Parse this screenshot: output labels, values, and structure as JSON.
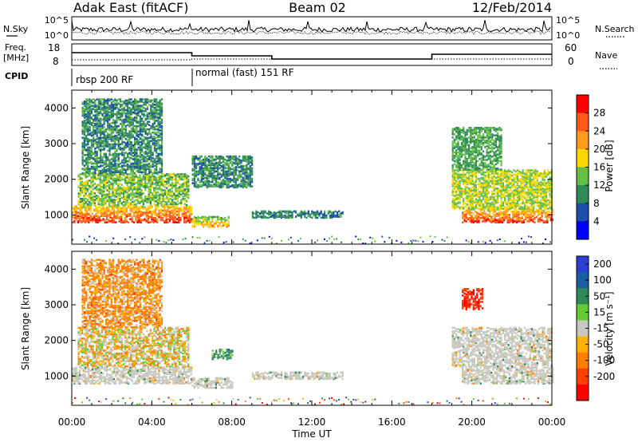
{
  "header": {
    "station": "Adak East (fitACF)",
    "beam": "Beam 02",
    "date": "12/Feb/2014"
  },
  "summary_panels": {
    "nsky_label": "N.Sky",
    "nsearch_label": "N.Search",
    "nsky_ticks": [
      "10^5",
      "10^0"
    ],
    "nsky_right_ticks": [
      "10^5",
      "10^0"
    ],
    "freq_label_1": "Freq.",
    "freq_label_2": "[MHz]",
    "freq_ticks": [
      "18",
      "8"
    ],
    "nave_label": "Nave",
    "nave_ticks": [
      "60",
      "0"
    ],
    "cpid_label": "CPID",
    "cpid_segments": [
      {
        "label": "rbsp 200 RF",
        "start_hour": 0,
        "end_hour": 6
      },
      {
        "label": "normal (fast) 151 RF",
        "start_hour": 6,
        "end_hour": 24
      }
    ]
  },
  "chart_data": [
    {
      "type": "heatmap",
      "panel": "power",
      "ylabel": "Slant Range [km]",
      "xlabel": "",
      "ylim": [
        180,
        4500
      ],
      "yticks": [
        1000,
        2000,
        3000,
        4000
      ],
      "xlim_hours": [
        0,
        24
      ],
      "colorbar_label": "Power [dB]",
      "colorbar_ticks": [
        4,
        8,
        12,
        16,
        20,
        24,
        28
      ],
      "colors": [
        "#0000ff",
        "#1a4ea8",
        "#2e8b57",
        "#66c048",
        "#ffd700",
        "#ff9a1c",
        "#ff5a1a",
        "#ff0000"
      ],
      "echo_regions": [
        {
          "t": [
            0.0,
            6.0
          ],
          "r": [
            820,
            1300
          ],
          "power": 28
        },
        {
          "t": [
            0.3,
            5.8
          ],
          "r": [
            1300,
            2200
          ],
          "power": 14
        },
        {
          "t": [
            0.5,
            4.5
          ],
          "r": [
            2200,
            4300
          ],
          "power": 10
        },
        {
          "t": [
            6.0,
            7.8
          ],
          "r": [
            700,
            1000
          ],
          "power": 22
        },
        {
          "t": [
            6.0,
            9.0
          ],
          "r": [
            1800,
            2700
          ],
          "power": 10
        },
        {
          "t": [
            9.0,
            13.5
          ],
          "r": [
            950,
            1150
          ],
          "power": 9
        },
        {
          "t": [
            19.5,
            24.0
          ],
          "r": [
            820,
            1200
          ],
          "power": 28
        },
        {
          "t": [
            19.0,
            24.0
          ],
          "r": [
            1200,
            2300
          ],
          "power": 16
        },
        {
          "t": [
            19.0,
            21.5
          ],
          "r": [
            2300,
            3500
          ],
          "power": 12
        }
      ]
    },
    {
      "type": "heatmap",
      "panel": "velocity",
      "ylabel": "Slant Range [km]",
      "xlabel": "Time UT",
      "ylim": [
        180,
        4500
      ],
      "yticks": [
        1000,
        2000,
        3000,
        4000
      ],
      "xlim_hours": [
        0,
        24
      ],
      "xtick_labels": [
        "00:00",
        "04:00",
        "08:00",
        "12:00",
        "16:00",
        "20:00",
        "00:00"
      ],
      "colorbar_label": "Velocity [m s⁻¹]",
      "colorbar_ticks": [
        200,
        100,
        50,
        15,
        -15,
        -50,
        -100,
        -200
      ],
      "colors": [
        "#2a3fcf",
        "#1a5ea0",
        "#2e8b57",
        "#66cc33",
        "#c8c8c0",
        "#ffb000",
        "#ff8000",
        "#ff4000",
        "#ff0000"
      ],
      "echo_regions": [
        {
          "t": [
            0.0,
            6.0
          ],
          "r": [
            820,
            1300
          ],
          "velocity": 0
        },
        {
          "t": [
            0.3,
            5.8
          ],
          "r": [
            1300,
            2400
          ],
          "velocity": -10
        },
        {
          "t": [
            0.5,
            4.5
          ],
          "r": [
            2400,
            4300
          ],
          "velocity": -40
        },
        {
          "t": [
            6.0,
            8.0
          ],
          "r": [
            700,
            1000
          ],
          "velocity": 0
        },
        {
          "t": [
            7.0,
            8.0
          ],
          "r": [
            1500,
            1800
          ],
          "velocity": 40
        },
        {
          "t": [
            9.0,
            13.5
          ],
          "r": [
            950,
            1150
          ],
          "velocity": 0
        },
        {
          "t": [
            19.5,
            24.0
          ],
          "r": [
            820,
            1300
          ],
          "velocity": 0
        },
        {
          "t": [
            19.0,
            24.0
          ],
          "r": [
            1300,
            2400
          ],
          "velocity": 0
        },
        {
          "t": [
            19.5,
            20.5
          ],
          "r": [
            2900,
            3500
          ],
          "velocity": -150
        }
      ]
    }
  ]
}
